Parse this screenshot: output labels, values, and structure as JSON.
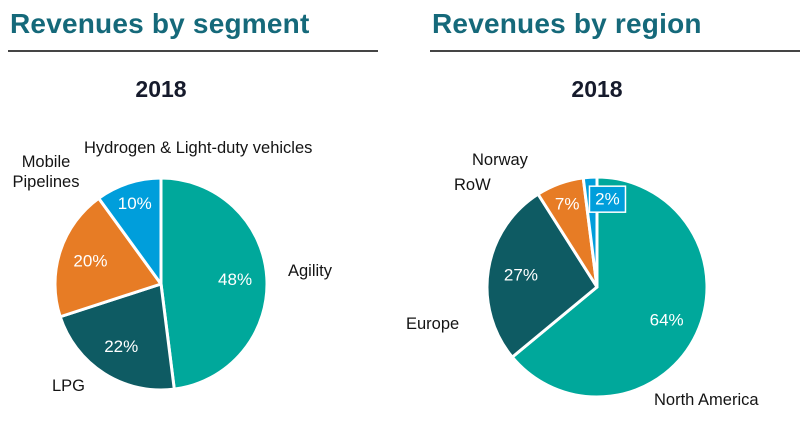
{
  "colors": {
    "heading": "#15697A",
    "year_text": "#161B2C",
    "rule": "#454545",
    "category_label_text": "#141414",
    "percent_label_text": "#ffffff",
    "slice_teal": "#00A89B",
    "slice_dark_teal": "#0E5B63",
    "slice_orange": "#E77C25",
    "slice_light_blue": "#009EDB"
  },
  "chart_data": [
    {
      "type": "pie",
      "title": "Revenues by segment",
      "subtitle": "2018",
      "start_angle_deg": 0,
      "direction": "clockwise",
      "labels_style": "percent-inside-white",
      "slices": [
        {
          "label": "Agility",
          "value": 48,
          "pct_label": "48%",
          "color": "#00A89B"
        },
        {
          "label": "LPG",
          "value": 22,
          "pct_label": "22%",
          "color": "#0E5B63"
        },
        {
          "label": "Mobile Pipelines",
          "value": 20,
          "pct_label": "20%",
          "color": "#E77C25"
        },
        {
          "label": "Hydrogen & Light-duty vehicles",
          "value": 10,
          "pct_label": "10%",
          "color": "#009EDB"
        }
      ]
    },
    {
      "type": "pie",
      "title": "Revenues by region",
      "subtitle": "2018",
      "start_angle_deg": 0,
      "direction": "clockwise",
      "labels_style": "percent-inside-white",
      "slices": [
        {
          "label": "North America",
          "value": 64,
          "pct_label": "64%",
          "color": "#00A89B"
        },
        {
          "label": "Europe",
          "value": 27,
          "pct_label": "27%",
          "color": "#0E5B63"
        },
        {
          "label": "RoW",
          "value": 7,
          "pct_label": "7%",
          "color": "#E77C25"
        },
        {
          "label": "Norway",
          "value": 2,
          "pct_label": "2%",
          "color": "#009EDB",
          "boxed_label": true
        }
      ]
    }
  ]
}
